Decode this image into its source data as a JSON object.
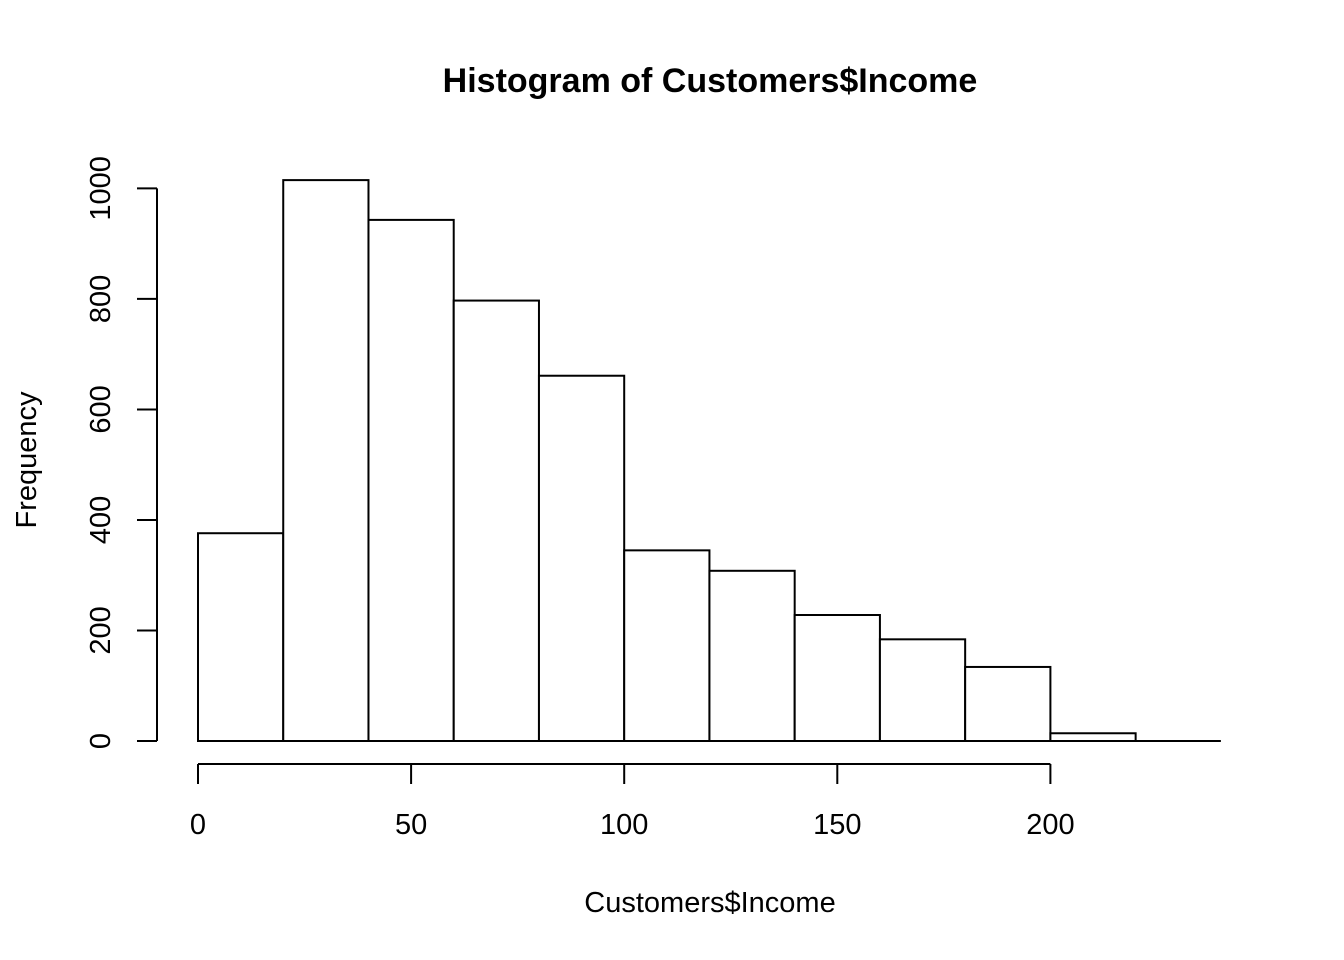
{
  "chart_data": {
    "type": "bar",
    "title": "Histogram of Customers$Income",
    "xlabel": "Customers$Income",
    "ylabel": "Frequency",
    "bin_edges": [
      0,
      20,
      40,
      60,
      80,
      100,
      120,
      140,
      160,
      180,
      200,
      220
    ],
    "values": [
      376,
      1015,
      943,
      797,
      661,
      345,
      308,
      228,
      184,
      134,
      14
    ],
    "xlim": [
      0,
      240
    ],
    "ylim": [
      0,
      1000
    ],
    "x_ticks": [
      0,
      50,
      100,
      150,
      200
    ],
    "y_ticks": [
      0,
      200,
      400,
      600,
      800,
      1000
    ],
    "grid": false,
    "legend": "none"
  }
}
